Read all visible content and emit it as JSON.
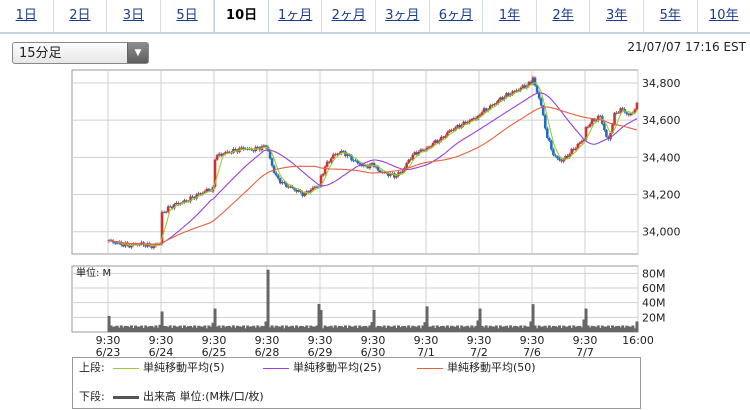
{
  "tabs": [
    {
      "label": "1日",
      "active": false
    },
    {
      "label": "2日",
      "active": false
    },
    {
      "label": "3日",
      "active": false
    },
    {
      "label": "5日",
      "active": false
    },
    {
      "label": "10日",
      "active": true
    },
    {
      "label": "1ヶ月",
      "active": false
    },
    {
      "label": "2ヶ月",
      "active": false
    },
    {
      "label": "3ヶ月",
      "active": false
    },
    {
      "label": "6ヶ月",
      "active": false
    },
    {
      "label": "1年",
      "active": false
    },
    {
      "label": "2年",
      "active": false
    },
    {
      "label": "3年",
      "active": false
    },
    {
      "label": "5年",
      "active": false
    },
    {
      "label": "10年",
      "active": false
    }
  ],
  "interval_select": {
    "value": "15分足"
  },
  "timestamp": "21/07/07 17:16 EST",
  "legend": {
    "upper_label": "上段:",
    "lower_label": "下段:",
    "items": [
      {
        "label": "単純移動平均(5)",
        "color": "#9acd32"
      },
      {
        "label": "単純移動平均(25)",
        "color": "#9a3fd6"
      },
      {
        "label": "単純移動平均(50)",
        "color": "#e8603c"
      }
    ],
    "volume_label": "出来高 単位:(M株/口/枚)",
    "volume_color": "#555555"
  },
  "chart_data": {
    "type": "candlestick",
    "price_axis": {
      "ticks": [
        34000,
        34200,
        34400,
        34600,
        34800
      ],
      "tick_labels": [
        "34,000",
        "34,200",
        "34,400",
        "34,600",
        "34,800"
      ],
      "range": [
        33880,
        34870
      ]
    },
    "volume_axis": {
      "unit_label": "単位: M",
      "ticks": [
        20,
        40,
        60,
        80
      ],
      "tick_labels": [
        "20M",
        "40M",
        "60M",
        "80M"
      ],
      "range": [
        0,
        90
      ]
    },
    "x_labels": [
      {
        "time": "9:30",
        "date": "6/23"
      },
      {
        "time": "9:30",
        "date": "6/24"
      },
      {
        "time": "9:30",
        "date": "6/25"
      },
      {
        "time": "9:30",
        "date": "6/28"
      },
      {
        "time": "9:30",
        "date": "6/29"
      },
      {
        "time": "9:30",
        "date": "6/30"
      },
      {
        "time": "9:30",
        "date": "7/1"
      },
      {
        "time": "9:30",
        "date": "7/2"
      },
      {
        "time": "9:30",
        "date": "7/6"
      },
      {
        "time": "9:30",
        "date": "7/7"
      },
      {
        "time": "16:00",
        "date": ""
      }
    ],
    "series": [
      {
        "name": "単純移動平均(5)",
        "color": "#9acd32"
      },
      {
        "name": "単純移動平均(25)",
        "color": "#9a3fd6"
      },
      {
        "name": "単純移動平均(50)",
        "color": "#e8603c"
      }
    ],
    "daily_price_path": [
      {
        "day": "6/23",
        "points": [
          33950,
          33940,
          33930,
          33925,
          33935,
          33930,
          33920,
          33940
        ]
      },
      {
        "day": "6/24",
        "points": [
          34100,
          34130,
          34150,
          34160,
          34180,
          34200,
          34220,
          34230
        ]
      },
      {
        "day": "6/25",
        "points": [
          34400,
          34420,
          34430,
          34440,
          34450,
          34440,
          34450,
          34460
        ]
      },
      {
        "day": "6/28",
        "points": [
          34430,
          34300,
          34260,
          34240,
          34220,
          34200,
          34230,
          34250
        ]
      },
      {
        "day": "6/29",
        "points": [
          34300,
          34380,
          34420,
          34430,
          34400,
          34370,
          34350,
          34360
        ]
      },
      {
        "day": "6/30",
        "points": [
          34350,
          34320,
          34310,
          34300,
          34330,
          34400,
          34430,
          34440
        ]
      },
      {
        "day": "7/1",
        "points": [
          34450,
          34480,
          34500,
          34540,
          34560,
          34580,
          34600,
          34620
        ]
      },
      {
        "day": "7/2",
        "points": [
          34640,
          34660,
          34690,
          34720,
          34740,
          34760,
          34780,
          34800
        ]
      },
      {
        "day": "7/6",
        "points": [
          34820,
          34700,
          34500,
          34400,
          34380,
          34420,
          34460,
          34500
        ]
      },
      {
        "day": "7/7",
        "points": [
          34560,
          34600,
          34620,
          34480,
          34640,
          34660,
          34620,
          34680
        ]
      }
    ],
    "daily_volume_peak": [
      22,
      28,
      32,
      85,
      30,
      30,
      35,
      32,
      38,
      32
    ],
    "grid": true
  }
}
